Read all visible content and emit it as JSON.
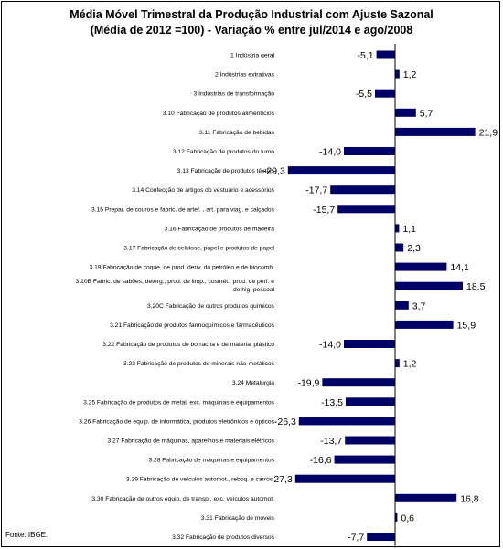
{
  "chart_data": {
    "type": "bar",
    "orientation": "horizontal",
    "title": "Média Móvel Trimestral da Produção Industrial com Ajuste Sazonal",
    "subtitle": "(Média de 2012 =100) - Variação % entre jul/2014 e ago/2008",
    "source": "Fonte: IBGE.",
    "bar_color": "#000066",
    "xlim": [
      -32,
      26
    ],
    "categories": [
      [
        "1 Indústria geral"
      ],
      [
        "2 Indústrias extrativas"
      ],
      [
        "3 Indústrias de transformação"
      ],
      [
        "3.10 Fabricação de produtos alimentícios"
      ],
      [
        "3.11 Fabricação de bebidas"
      ],
      [
        "3.12 Fabricação de produtos do fumo"
      ],
      [
        "3.13 Fabricação de produtos têxteis"
      ],
      [
        "3.14 Confecção de artigos do vestuário e acessórios"
      ],
      [
        "3.15 Prepar. de couros e fabric. de artef. , art. para viag. e calçados"
      ],
      [
        "3.16 Fabricação de produtos de madeira"
      ],
      [
        "3.17 Fabricação de celulose, papel e produtos de papel"
      ],
      [
        "3.19 Fabricação de coque, de prod. deriv. do petróleo e de biocomb."
      ],
      [
        "3.20B Fabric. de sabões, deterg., prod. de limp., cosmét., prod. de perf. e",
        "de hig. pessoal"
      ],
      [
        "3.20C Fabricação de outros produtos químicos"
      ],
      [
        "3.21 Fabricação de produtos farmoquímicos e farmacêuticos"
      ],
      [
        "3.22 Fabricação de produtos de borracha e de material plástico"
      ],
      [
        "3.23 Fabricação de produtos de minerais não-metálicos"
      ],
      [
        "3.24 Metalurgia"
      ],
      [
        "3.25 Fabricação de produtos de metal, exc. máquinas e equipamentos"
      ],
      [
        "3.26 Fabricação de equip. de informática, produtos eletrônicos e ópticos"
      ],
      [
        "3.27 Fabricação de máquinas, aparelhos e materiais elétricos"
      ],
      [
        "3.28 Fabricação de máquinas e equipamentos"
      ],
      [
        "3.29 Fabricação de veículos automot., reboq. e carroc."
      ],
      [
        "3.30 Fabricação de outros equip. de transp., exc. veículos automot."
      ],
      [
        "3.31 Fabricação de móveis"
      ],
      [
        "3.32 Fabricação de produtos diversos"
      ]
    ],
    "values": [
      -5.1,
      1.2,
      -5.5,
      5.7,
      21.9,
      -14.0,
      -29.3,
      -17.7,
      -15.7,
      1.1,
      2.3,
      14.1,
      18.5,
      3.7,
      15.9,
      -14.0,
      1.2,
      -19.9,
      -13.5,
      -26.3,
      -13.7,
      -16.6,
      -27.3,
      16.8,
      0.6,
      -7.7
    ],
    "value_labels": [
      "-5,1",
      "1,2",
      "-5,5",
      "5,7",
      "21,9",
      "-14,0",
      "-29,3",
      "-17,7",
      "-15,7",
      "1,1",
      "2,3",
      "14,1",
      "18,5",
      "3,7",
      "15,9",
      "-14,0",
      "1,2",
      "-19,9",
      "-13,5",
      "-26,3",
      "-13,7",
      "-16,6",
      "-27,3",
      "16,8",
      "0,6",
      "-7,7"
    ]
  }
}
